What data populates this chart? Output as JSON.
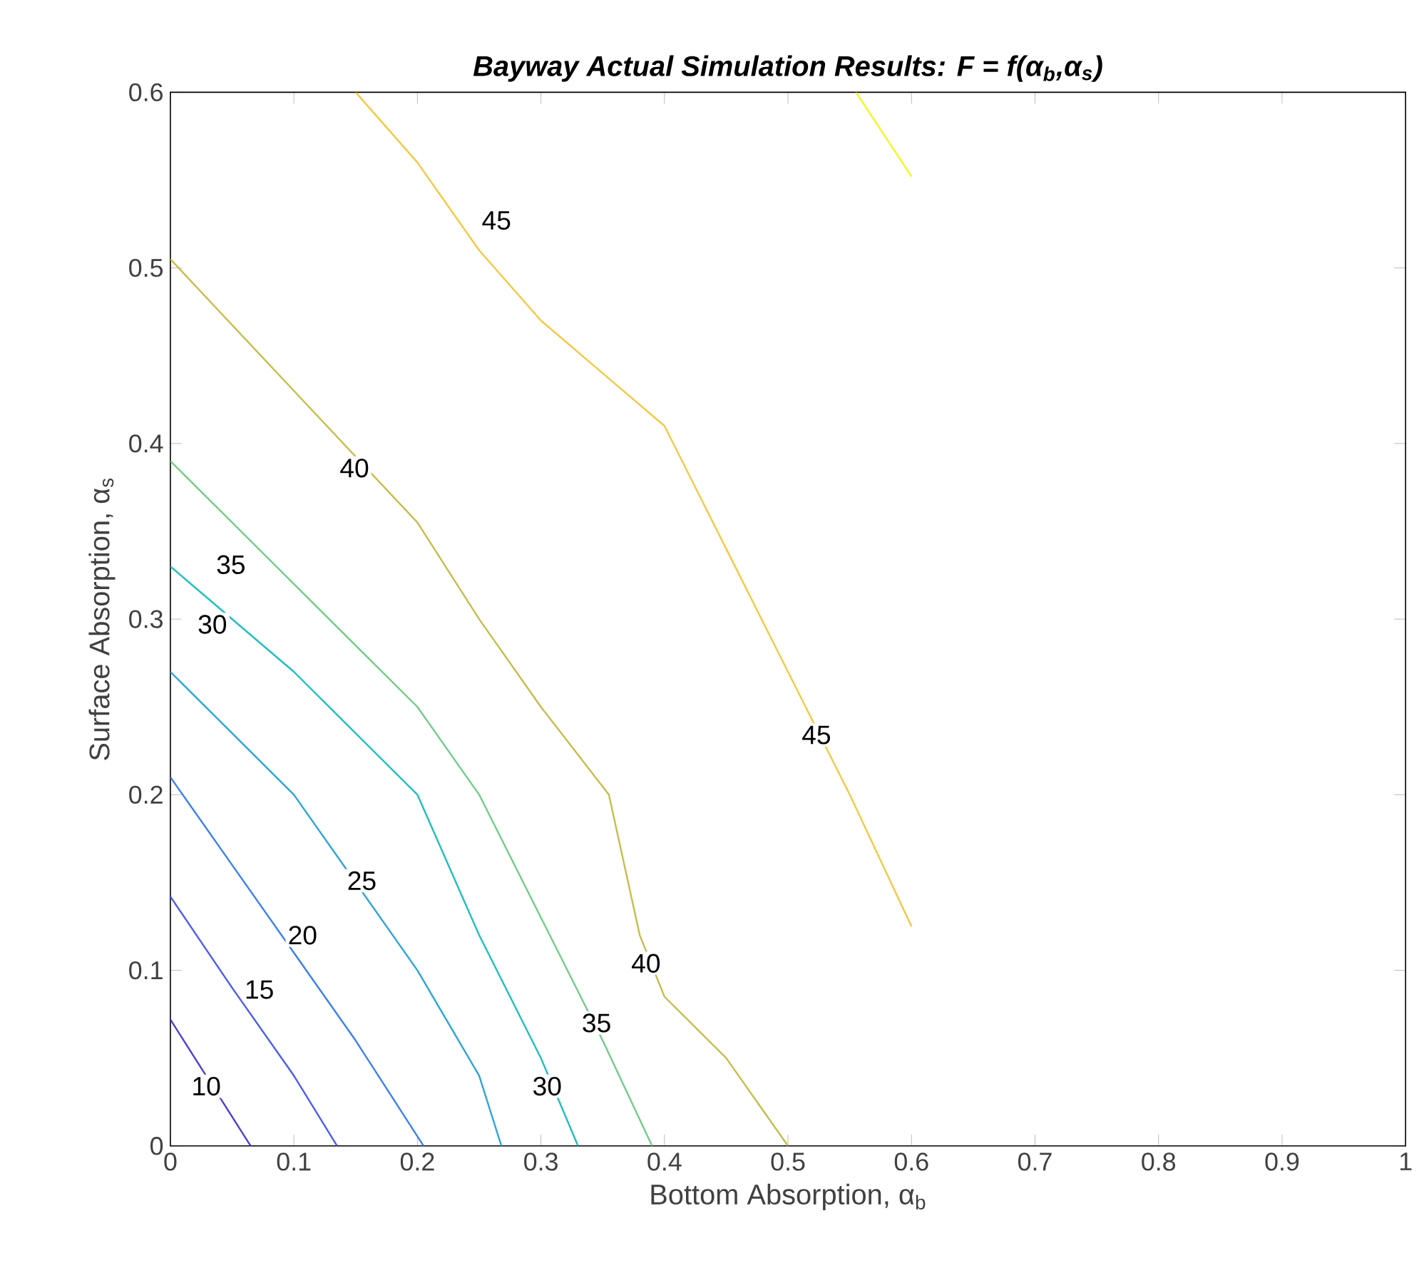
{
  "chart_data": {
    "type": "line",
    "title": "Bayway Actual Simulation Results: F = f(α$_{b}$,α$_{s}$)",
    "xlabel": "Bottom Absorption, α$_{b}$",
    "ylabel": "Surface Absorption, α$_{s}$",
    "xlim": [
      0,
      1
    ],
    "ylim": [
      0,
      0.6
    ],
    "xticks": [
      0,
      0.1,
      0.2,
      0.3,
      0.4,
      0.5,
      0.6,
      0.7,
      0.8,
      0.9,
      1
    ],
    "yticks": [
      0,
      0.1,
      0.2,
      0.3,
      0.4,
      0.5,
      0.6
    ],
    "marker": "none",
    "line_style": "solid",
    "series": [
      {
        "color": "#4b3fd4",
        "x": [
          0,
          0.065
        ],
        "values": [
          0.072,
          0
        ]
      },
      {
        "color": "#4a5cf0",
        "x": [
          0,
          0.05,
          0.1,
          0.135
        ],
        "values": [
          0.142,
          0.09,
          0.04,
          0
        ]
      },
      {
        "color": "#3a80f0",
        "x": [
          0,
          0.05,
          0.1,
          0.15,
          0.205
        ],
        "values": [
          0.21,
          0.16,
          0.11,
          0.06,
          0
        ]
      },
      {
        "color": "#2aa4e0",
        "x": [
          0,
          0.1,
          0.2,
          0.25,
          0.268
        ],
        "values": [
          0.27,
          0.2,
          0.1,
          0.04,
          0
        ]
      },
      {
        "color": "#1fbdc2",
        "x": [
          0,
          0.1,
          0.2,
          0.25,
          0.3,
          0.33
        ],
        "values": [
          0.33,
          0.27,
          0.2,
          0.12,
          0.05,
          0
        ]
      },
      {
        "color": "#72cc88",
        "x": [
          0,
          0.1,
          0.2,
          0.25,
          0.3,
          0.35,
          0.39
        ],
        "values": [
          0.39,
          0.32,
          0.25,
          0.2,
          0.13,
          0.06,
          0
        ]
      },
      {
        "color": "#c6bd4a",
        "x": [
          0,
          0.1,
          0.2,
          0.25,
          0.3,
          0.355,
          0.38,
          0.4,
          0.45,
          0.48,
          0.5
        ],
        "values": [
          0.505,
          0.43,
          0.355,
          0.3,
          0.25,
          0.2,
          0.12,
          0.085,
          0.05,
          0.02,
          0
        ]
      },
      {
        "color": "#f5c843",
        "x": [
          0.15,
          0.2,
          0.25,
          0.3,
          0.35,
          0.4,
          0.45,
          0.5,
          0.55,
          0.6
        ],
        "values": [
          0.6,
          0.56,
          0.51,
          0.47,
          0.44,
          0.41,
          0.34,
          0.27,
          0.2,
          0.125
        ]
      },
      {
        "color": "#f9f41f",
        "x": [
          0.555,
          0.6
        ],
        "values": [
          0.6,
          0.552
        ]
      }
    ],
    "annotations": [
      {
        "text": "10",
        "x": 0.029,
        "y": 0.034
      },
      {
        "text": "15",
        "x": 0.072,
        "y": 0.089
      },
      {
        "text": "20",
        "x": 0.107,
        "y": 0.12
      },
      {
        "text": "25",
        "x": 0.155,
        "y": 0.151
      },
      {
        "text": "30",
        "x": 0.034,
        "y": 0.297
      },
      {
        "text": "30",
        "x": 0.305,
        "y": 0.034
      },
      {
        "text": "35",
        "x": 0.049,
        "y": 0.331
      },
      {
        "text": "35",
        "x": 0.345,
        "y": 0.07
      },
      {
        "text": "40",
        "x": 0.149,
        "y": 0.386
      },
      {
        "text": "40",
        "x": 0.385,
        "y": 0.104
      },
      {
        "text": "45",
        "x": 0.264,
        "y": 0.527
      },
      {
        "text": "45",
        "x": 0.523,
        "y": 0.234
      }
    ]
  }
}
